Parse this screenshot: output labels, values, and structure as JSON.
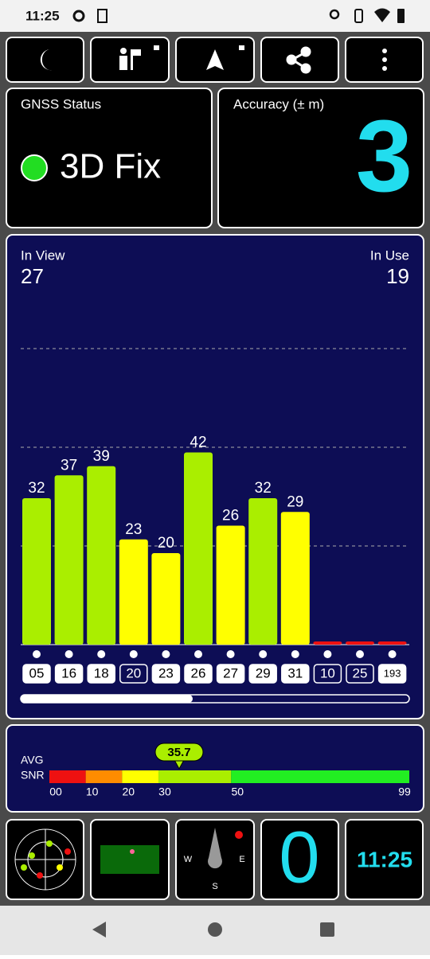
{
  "status_bar": {
    "time": "11:25"
  },
  "gnss_status": {
    "title": "GNSS Status",
    "fix": "3D Fix"
  },
  "accuracy": {
    "title": "Accuracy (± m)",
    "value": 3
  },
  "signal_view": {
    "in_view_label": "In View",
    "in_view": 27,
    "in_use_label": "In Use",
    "in_use": 19,
    "satellites": [
      {
        "id": "05",
        "snr": 32,
        "in_use": true
      },
      {
        "id": "16",
        "snr": 37,
        "in_use": true
      },
      {
        "id": "18",
        "snr": 39,
        "in_use": true
      },
      {
        "id": "20",
        "snr": 23,
        "in_use": false
      },
      {
        "id": "23",
        "snr": 20,
        "in_use": true
      },
      {
        "id": "26",
        "snr": 42,
        "in_use": true
      },
      {
        "id": "27",
        "snr": 26,
        "in_use": true
      },
      {
        "id": "29",
        "snr": 32,
        "in_use": true
      },
      {
        "id": "31",
        "snr": 29,
        "in_use": true
      },
      {
        "id": "10",
        "snr": 0,
        "in_use": false
      },
      {
        "id": "25",
        "snr": 0,
        "in_use": false
      },
      {
        "id": "193",
        "snr": 0,
        "in_use": true
      }
    ]
  },
  "snr_scale": {
    "avg_label": "AVG",
    "snr_label": "SNR",
    "average": 35.7,
    "ticks": [
      {
        "value": 0,
        "label": "00"
      },
      10,
      20,
      30,
      50,
      99
    ],
    "colors": [
      "#ee1111",
      "#ff8c00",
      "#ffff00",
      "#aaee00",
      "#22ee22"
    ]
  },
  "tiles": {
    "compass": {
      "west": "W",
      "east": "E",
      "south": "S"
    },
    "speed": 0,
    "clock": "11:25"
  }
}
